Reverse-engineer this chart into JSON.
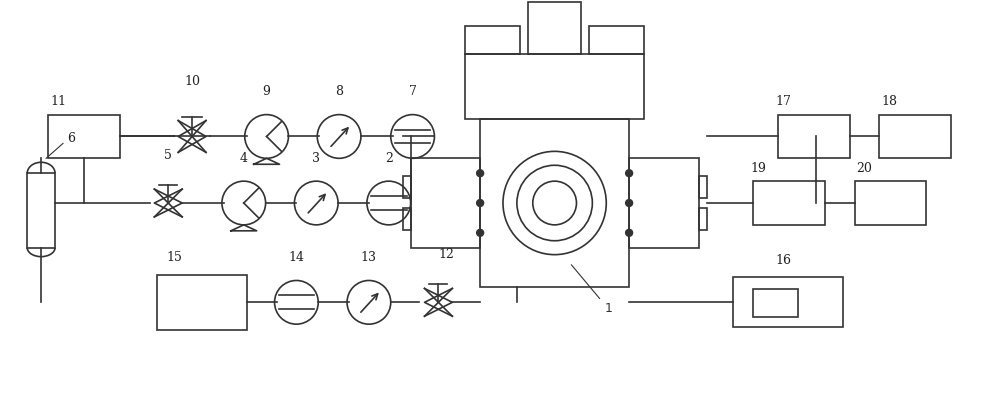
{
  "bg_color": "#ffffff",
  "line_color": "#333333",
  "lw": 1.2,
  "figsize": [
    10.0,
    4.08
  ],
  "dpi": 100
}
